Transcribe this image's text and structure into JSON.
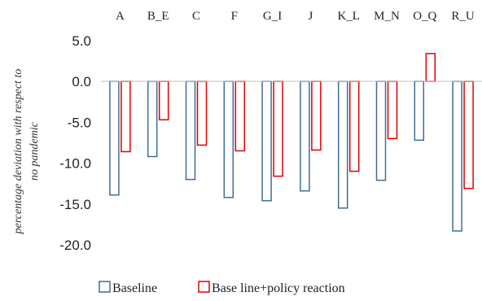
{
  "chart_data": {
    "type": "bar",
    "categories": [
      "A",
      "B_E",
      "C",
      "F",
      "G_I",
      "J",
      "K_L",
      "M_N",
      "O_Q",
      "R_U"
    ],
    "series": [
      {
        "name": "Baseline",
        "color": "#3f6c99",
        "values": [
          -13.9,
          -9.2,
          -12.0,
          -14.2,
          -14.6,
          -13.4,
          -15.5,
          -12.1,
          -7.2,
          -18.3
        ]
      },
      {
        "name": "Base line+policy reaction",
        "color": "#e00000",
        "values": [
          -8.6,
          -4.7,
          -7.8,
          -8.5,
          -11.6,
          -8.4,
          -11.0,
          -7.0,
          3.4,
          -13.1
        ]
      }
    ],
    "title": "",
    "xlabel": "",
    "ylabel": "percentage deviation with respect to no pandemic",
    "ylabel_lines": [
      "percentage deviation with respect to",
      "no pandemic"
    ],
    "ylim": [
      -20,
      5
    ],
    "yticks": [
      "5.0",
      "0.0",
      "-5.0",
      "-10.0",
      "-15.0",
      "-20.0"
    ],
    "ytick_values": [
      5,
      0,
      -5,
      -10,
      -15,
      -20
    ],
    "xaxis_position": "top",
    "grid": false,
    "legend_position": "bottom"
  }
}
